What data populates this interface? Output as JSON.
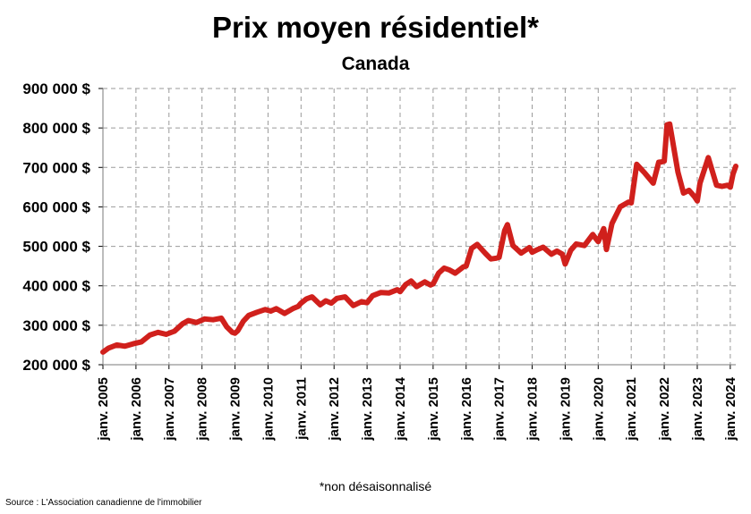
{
  "chart_data": {
    "type": "line",
    "title": "Prix moyen résidentiel*",
    "subtitle": "Canada",
    "xlabel": "",
    "ylabel": "",
    "ylim": [
      200000,
      900000
    ],
    "y_ticks": [
      "200 000 $",
      "300 000 $",
      "400 000 $",
      "500 000 $",
      "600 000 $",
      "700 000 $",
      "800 000 $",
      "900 000 $"
    ],
    "x_tick_labels": [
      "janv. 2005",
      "janv. 2006",
      "janv. 2007",
      "janv. 2008",
      "janv. 2009",
      "janv. 2010",
      "janv. 2011",
      "janv. 2012",
      "janv. 2013",
      "janv. 2014",
      "janv. 2015",
      "janv. 2016",
      "janv. 2017",
      "janv. 2018",
      "janv. 2019",
      "janv. 2020",
      "janv. 2021",
      "janv. 2022",
      "janv. 2023",
      "janv. 2024"
    ],
    "x_range": [
      "2005-01",
      "2024-03"
    ],
    "grid": true,
    "line_color": "#d0201c",
    "series": [
      {
        "points": [
          [
            "2005-01",
            232000
          ],
          [
            "2005-03",
            242000
          ],
          [
            "2005-06",
            250000
          ],
          [
            "2005-09",
            247000
          ],
          [
            "2005-12",
            253000
          ],
          [
            "2006-03",
            258000
          ],
          [
            "2006-06",
            275000
          ],
          [
            "2006-09",
            282000
          ],
          [
            "2006-12",
            277000
          ],
          [
            "2007-03",
            285000
          ],
          [
            "2007-06",
            304000
          ],
          [
            "2007-08",
            312000
          ],
          [
            "2007-11",
            307000
          ],
          [
            "2008-02",
            316000
          ],
          [
            "2008-05",
            314000
          ],
          [
            "2008-08",
            318000
          ],
          [
            "2008-10",
            296000
          ],
          [
            "2008-12",
            282000
          ],
          [
            "2009-01",
            280000
          ],
          [
            "2009-02",
            286000
          ],
          [
            "2009-04",
            310000
          ],
          [
            "2009-06",
            325000
          ],
          [
            "2009-09",
            333000
          ],
          [
            "2009-12",
            340000
          ],
          [
            "2010-02",
            336000
          ],
          [
            "2010-04",
            342000
          ],
          [
            "2010-07",
            330000
          ],
          [
            "2010-10",
            342000
          ],
          [
            "2010-12",
            348000
          ],
          [
            "2011-01",
            356000
          ],
          [
            "2011-03",
            367000
          ],
          [
            "2011-05",
            372000
          ],
          [
            "2011-08",
            352000
          ],
          [
            "2011-10",
            362000
          ],
          [
            "2011-12",
            356000
          ],
          [
            "2012-02",
            368000
          ],
          [
            "2012-05",
            372000
          ],
          [
            "2012-08",
            350000
          ],
          [
            "2012-11",
            360000
          ],
          [
            "2013-01",
            357000
          ],
          [
            "2013-03",
            375000
          ],
          [
            "2013-06",
            383000
          ],
          [
            "2013-09",
            382000
          ],
          [
            "2013-12",
            390000
          ],
          [
            "2014-01",
            385000
          ],
          [
            "2014-03",
            403000
          ],
          [
            "2014-05",
            412000
          ],
          [
            "2014-07",
            398000
          ],
          [
            "2014-10",
            410000
          ],
          [
            "2014-12",
            402000
          ],
          [
            "2015-01",
            405000
          ],
          [
            "2015-03",
            432000
          ],
          [
            "2015-05",
            445000
          ],
          [
            "2015-07",
            440000
          ],
          [
            "2015-09",
            432000
          ],
          [
            "2015-12",
            448000
          ],
          [
            "2016-01",
            450000
          ],
          [
            "2016-03",
            495000
          ],
          [
            "2016-05",
            505000
          ],
          [
            "2016-08",
            482000
          ],
          [
            "2016-10",
            468000
          ],
          [
            "2016-12",
            470000
          ],
          [
            "2017-01",
            472000
          ],
          [
            "2017-03",
            540000
          ],
          [
            "2017-04",
            555000
          ],
          [
            "2017-06",
            502000
          ],
          [
            "2017-09",
            483000
          ],
          [
            "2017-12",
            497000
          ],
          [
            "2018-01",
            485000
          ],
          [
            "2018-03",
            492000
          ],
          [
            "2018-05",
            498000
          ],
          [
            "2018-08",
            480000
          ],
          [
            "2018-10",
            488000
          ],
          [
            "2018-12",
            480000
          ],
          [
            "2019-01",
            455000
          ],
          [
            "2019-03",
            490000
          ],
          [
            "2019-05",
            506000
          ],
          [
            "2019-08",
            502000
          ],
          [
            "2019-11",
            530000
          ],
          [
            "2019-12",
            521000
          ],
          [
            "2020-01",
            512000
          ],
          [
            "2020-03",
            545000
          ],
          [
            "2020-04",
            492000
          ],
          [
            "2020-06",
            558000
          ],
          [
            "2020-09",
            600000
          ],
          [
            "2020-12",
            612000
          ],
          [
            "2021-01",
            610000
          ],
          [
            "2021-03",
            708000
          ],
          [
            "2021-06",
            685000
          ],
          [
            "2021-09",
            660000
          ],
          [
            "2021-11",
            713000
          ],
          [
            "2021-12",
            714000
          ],
          [
            "2022-01",
            716000
          ],
          [
            "2022-02",
            808000
          ],
          [
            "2022-03",
            810000
          ],
          [
            "2022-06",
            688000
          ],
          [
            "2022-08",
            635000
          ],
          [
            "2022-10",
            642000
          ],
          [
            "2022-12",
            626000
          ],
          [
            "2023-01",
            615000
          ],
          [
            "2023-02",
            660000
          ],
          [
            "2023-05",
            725000
          ],
          [
            "2023-08",
            655000
          ],
          [
            "2023-10",
            652000
          ],
          [
            "2023-12",
            655000
          ],
          [
            "2024-01",
            650000
          ],
          [
            "2024-02",
            683000
          ],
          [
            "2024-03",
            703000
          ]
        ]
      }
    ]
  },
  "footnote": "*non désaisonnalisé",
  "source": "Source : L'Association canadienne de l'immobilier"
}
